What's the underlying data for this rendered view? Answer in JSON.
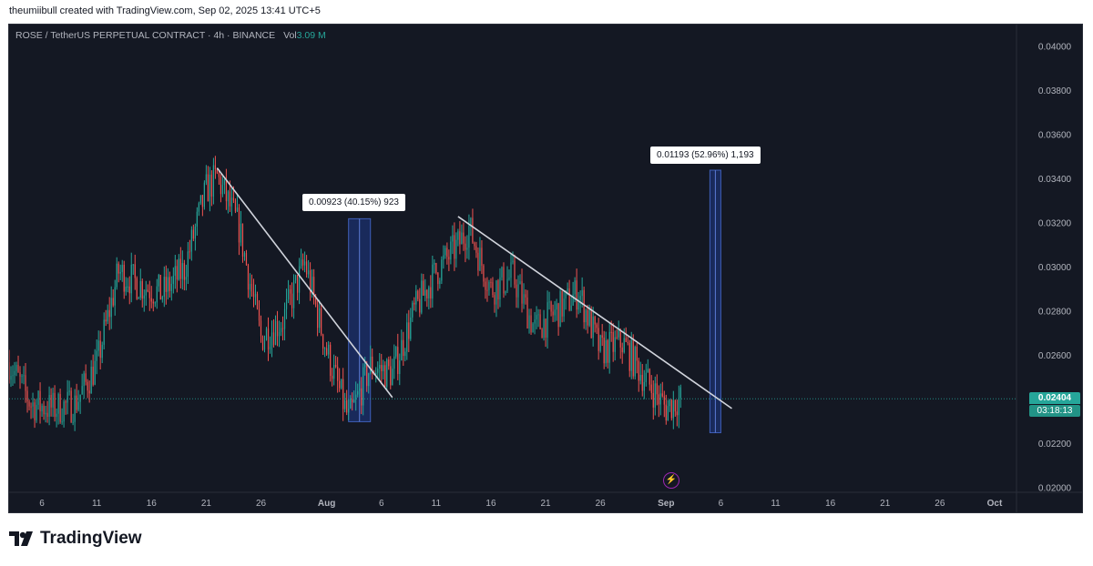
{
  "attribution": "theumiibull created with TradingView.com, Sep 02, 2025 13:41 UTC+5",
  "legend": {
    "symbol": "ROSE / TetherUS PERPETUAL CONTRACT · 4h · BINANCE",
    "vol_label": "Vol",
    "vol_value": "3.09 M"
  },
  "last_price": "0.02404",
  "countdown": "03:18:13",
  "measurements": [
    {
      "text": "0.00923 (40.15%) 923"
    },
    {
      "text": "0.01193 (52.96%) 1,193"
    }
  ],
  "colors": {
    "background": "#141823",
    "up": "#26a69a",
    "down": "#ef5350",
    "trendline": "#d1d4dc",
    "measure_fill": "#1e3a8a"
  },
  "footer": {
    "brand": "TradingView",
    "logo_icon": "tradingview-logo-icon"
  },
  "chart_data": {
    "type": "candlestick",
    "symbol": "ROSE/USDT Perpetual",
    "interval": "4h",
    "exchange": "BINANCE",
    "x_tick_labels": [
      "6",
      "11",
      "16",
      "21",
      "26",
      "Aug",
      "6",
      "11",
      "16",
      "21",
      "26",
      "Sep",
      "6",
      "11",
      "16",
      "21",
      "26",
      "Oct"
    ],
    "y_tick_labels": [
      "0.04000",
      "0.03800",
      "0.03600",
      "0.03400",
      "0.03200",
      "0.03000",
      "0.02800",
      "0.02600",
      "0.02200",
      "0.02000"
    ],
    "ylim": [
      0.0198,
      0.041
    ],
    "xlim": [
      "2025-07-03",
      "2025-10-03"
    ],
    "last_price": 0.02404,
    "price_path": [
      [
        "2025-07-03",
        0.0257
      ],
      [
        "2025-07-05",
        0.0238
      ],
      [
        "2025-07-07",
        0.0236
      ],
      [
        "2025-07-09",
        0.0238
      ],
      [
        "2025-07-11",
        0.0256
      ],
      [
        "2025-07-13",
        0.0298
      ],
      [
        "2025-07-15",
        0.0292
      ],
      [
        "2025-07-17",
        0.0288
      ],
      [
        "2025-07-19",
        0.0299
      ],
      [
        "2025-07-21",
        0.0335
      ],
      [
        "2025-07-22",
        0.0341
      ],
      [
        "2025-07-24",
        0.0318
      ],
      [
        "2025-07-26",
        0.0268
      ],
      [
        "2025-07-28",
        0.0276
      ],
      [
        "2025-07-30",
        0.0302
      ],
      [
        "2025-08-01",
        0.0262
      ],
      [
        "2025-08-03",
        0.0231
      ],
      [
        "2025-08-05",
        0.0255
      ],
      [
        "2025-08-07",
        0.0252
      ],
      [
        "2025-08-09",
        0.028
      ],
      [
        "2025-08-11",
        0.0298
      ],
      [
        "2025-08-13",
        0.031
      ],
      [
        "2025-08-14",
        0.0318
      ],
      [
        "2025-08-16",
        0.029
      ],
      [
        "2025-08-18",
        0.0296
      ],
      [
        "2025-08-20",
        0.0272
      ],
      [
        "2025-08-22",
        0.028
      ],
      [
        "2025-08-24",
        0.0289
      ],
      [
        "2025-08-26",
        0.0262
      ],
      [
        "2025-08-28",
        0.0266
      ],
      [
        "2025-08-30",
        0.025
      ],
      [
        "2025-09-01",
        0.0236
      ],
      [
        "2025-09-02",
        0.024
      ]
    ],
    "trendlines": [
      {
        "from": [
          "2025-07-22",
          0.0345
        ],
        "to": [
          "2025-08-07",
          0.0241
        ]
      },
      {
        "from": [
          "2025-08-13",
          0.0323
        ],
        "to": [
          "2025-09-07",
          0.0236
        ]
      }
    ],
    "measurements": [
      {
        "x": [
          "2025-08-03",
          "2025-08-05"
        ],
        "low": 0.023,
        "high": 0.0322,
        "change": 0.00923,
        "percent": 40.15,
        "ticks": 923
      },
      {
        "x": [
          "2025-09-05",
          "2025-09-06"
        ],
        "low": 0.0225,
        "high": 0.0344,
        "change": 0.01193,
        "percent": 52.96,
        "ticks": 1193
      }
    ]
  }
}
